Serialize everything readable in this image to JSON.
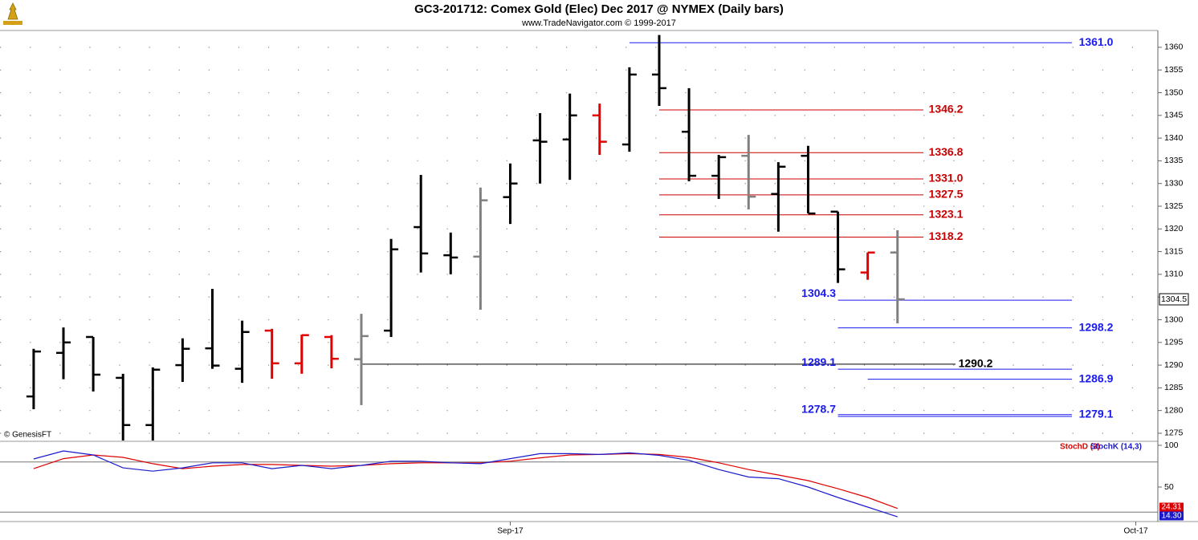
{
  "chart_data": [
    {
      "type": "ohlc",
      "title": "GC3-201712:  Comex Gold (Elec) Dec 2017 @ NYMEX  (Daily bars)",
      "subtitle": "www.TradeNavigator.com © 1999-2017",
      "annotation": "© GenesisFT",
      "open": [
        1283.1,
        1292.7,
        1296.2,
        1287.2,
        1276.8,
        1290.0,
        1293.7,
        1289.2,
        1297.6,
        1290.4,
        1296.2,
        1291.3,
        1297.6,
        1320.4,
        1314.2,
        1313.9,
        1327.0,
        1339.5,
        1339.7,
        1345.0,
        1338.6,
        1354.0,
        1341.4,
        1331.7,
        1336.1,
        1327.7,
        1336.1,
        1323.8,
        1310.4,
        1314.8
      ],
      "high": [
        1293.6,
        1298.3,
        1296.2,
        1288.1,
        1289.5,
        1295.9,
        1306.8,
        1299.8,
        1298.0,
        1296.7,
        1296.6,
        1301.3,
        1317.8,
        1331.9,
        1319.2,
        1329.1,
        1334.4,
        1345.5,
        1349.8,
        1347.6,
        1355.6,
        1362.7,
        1351.0,
        1336.3,
        1340.7,
        1334.7,
        1338.3,
        1323.8,
        1314.8,
        1319.7
      ],
      "low": [
        1280.3,
        1286.9,
        1284.2,
        1273.4,
        1273.4,
        1286.3,
        1289.2,
        1286.1,
        1287.0,
        1288.1,
        1289.3,
        1281.2,
        1296.2,
        1310.4,
        1310.0,
        1302.2,
        1321.1,
        1330.0,
        1330.8,
        1336.3,
        1337.0,
        1347.1,
        1330.5,
        1326.6,
        1324.3,
        1319.4,
        1323.4,
        1308.1,
        1308.8,
        1299.2
      ],
      "close": [
        1293.0,
        1295.0,
        1287.9,
        1276.8,
        1289.0,
        1293.6,
        1289.9,
        1297.3,
        1290.4,
        1296.6,
        1291.4,
        1296.4,
        1315.5,
        1314.6,
        1313.7,
        1326.3,
        1330.0,
        1339.2,
        1345.0,
        1339.2,
        1354.0,
        1351.0,
        1331.7,
        1335.8,
        1327.1,
        1333.7,
        1323.4,
        1311.1,
        1314.8,
        1304.5
      ],
      "colors": [
        "#000000",
        "#000000",
        "#000000",
        "#000000",
        "#000000",
        "#000000",
        "#000000",
        "#000000",
        "#e00000",
        "#e00000",
        "#e00000",
        "#808080",
        "#000000",
        "#000000",
        "#000000",
        "#808080",
        "#000000",
        "#000000",
        "#000000",
        "#e00000",
        "#000000",
        "#000000",
        "#000000",
        "#000000",
        "#808080",
        "#000000",
        "#000000",
        "#000000",
        "#e00000",
        "#808080"
      ],
      "levels": [
        {
          "value": 1361.0,
          "label": "1361.0",
          "color": "#1a1aee"
        },
        {
          "value": 1346.2,
          "label": "1346.2",
          "color": "#cc0000"
        },
        {
          "value": 1336.8,
          "label": "1336.8",
          "color": "#cc0000"
        },
        {
          "value": 1331.0,
          "label": "1331.0",
          "color": "#cc0000"
        },
        {
          "value": 1327.5,
          "label": "1327.5",
          "color": "#cc0000"
        },
        {
          "value": 1323.1,
          "label": "1323.1",
          "color": "#cc0000"
        },
        {
          "value": 1318.2,
          "label": "1318.2",
          "color": "#cc0000"
        },
        {
          "value": 1304.3,
          "label": "1304.3",
          "color": "#1a1aee"
        },
        {
          "value": 1298.2,
          "label": "1298.2",
          "color": "#1a1aee"
        },
        {
          "value": 1290.2,
          "label": "1290.2",
          "color": "#000000"
        },
        {
          "value": 1289.1,
          "label": "1289.1",
          "color": "#1a1aee"
        },
        {
          "value": 1286.9,
          "label": "1286.9",
          "color": "#1a1aee"
        },
        {
          "value": 1278.7,
          "label": "1278.7",
          "color": "#1a1aee"
        },
        {
          "value": 1279.1,
          "label": "1279.1",
          "color": "#1a1aee"
        }
      ],
      "ylim": [
        1273.4,
        1363.7
      ],
      "yticks": [
        1275,
        1280,
        1285,
        1290,
        1295,
        1300,
        1305,
        1310,
        1315,
        1320,
        1325,
        1330,
        1335,
        1340,
        1345,
        1350,
        1355,
        1360
      ],
      "xlim": [
        -1.13,
        37.74
      ],
      "xticks": [
        {
          "value": 16,
          "label": "Sep-17"
        },
        {
          "value": 37,
          "label": "Oct-17"
        }
      ],
      "grid": true
    },
    {
      "type": "line",
      "series": [
        {
          "name": "StochD (3)",
          "color": "#dd0000",
          "values": [
            72,
            84,
            88.5,
            85.6,
            78,
            72,
            75,
            77,
            77,
            76,
            75,
            76,
            78,
            79,
            79,
            79,
            81,
            85,
            88.5,
            89,
            90,
            89,
            85.6,
            79,
            71,
            64.4,
            57.7,
            48,
            37.5,
            24.31
          ]
        },
        {
          "name": "StochK (14,3)",
          "color": "#1a1acc",
          "values": [
            83.7,
            93.3,
            88.5,
            73,
            69,
            73,
            79,
            79,
            72,
            76,
            72,
            76,
            81,
            81,
            79,
            78,
            84,
            90,
            90,
            89,
            91,
            88,
            82,
            71,
            62,
            60,
            50,
            37.5,
            26,
            14.3
          ],
          "value_labels": [
            null,
            null,
            null,
            null,
            null,
            null,
            null,
            null,
            null,
            null,
            null,
            null,
            null,
            null,
            null,
            null,
            null,
            null,
            null,
            null,
            null,
            null,
            null,
            null,
            null,
            null,
            null,
            null,
            null,
            "14.30"
          ]
        }
      ],
      "reference_lines": [
        80,
        20
      ],
      "ylim": [
        8.65,
        103.85
      ],
      "yticks": [
        50,
        100
      ]
    }
  ]
}
